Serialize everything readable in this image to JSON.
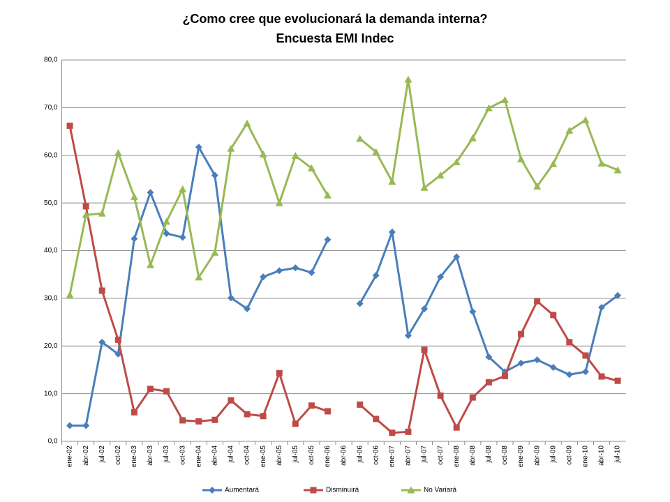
{
  "chart_data": {
    "type": "line",
    "title": "¿Como cree que evolucionará la demanda interna?",
    "subtitle": "Encuesta EMI Indec",
    "categories": [
      "ene-02",
      "abr-02",
      "jul-02",
      "oct-02",
      "ene-03",
      "abr-03",
      "jul-03",
      "oct-03",
      "ene-04",
      "abr-04",
      "jul-04",
      "oct-04",
      "ene-05",
      "abr-05",
      "jul-05",
      "oct-05",
      "ene-06",
      "abr-06",
      "jul-06",
      "oct-06",
      "ene-07",
      "abr-07",
      "jul-07",
      "oct-07",
      "ene-08",
      "abr-08",
      "jul-08",
      "oct-08",
      "ene-09",
      "abr-09",
      "jul-09",
      "oct-09",
      "ene-10",
      "abr-10",
      "jul-10"
    ],
    "series": [
      {
        "name": "Aumentará",
        "color": "#4a7ebb",
        "marker": "diamond",
        "values": [
          3.3,
          3.3,
          20.8,
          18.3,
          42.5,
          52.2,
          43.6,
          42.8,
          61.7,
          55.8,
          30.1,
          27.8,
          34.5,
          35.8,
          36.4,
          35.4,
          42.3,
          null,
          28.9,
          34.8,
          43.9,
          22.2,
          27.8,
          34.5,
          38.7,
          27.2,
          17.7,
          14.6,
          16.4,
          17.1,
          15.5,
          14.0,
          14.6,
          28.1,
          30.6
        ]
      },
      {
        "name": "Disminuirá",
        "color": "#be4b48",
        "marker": "square",
        "values": [
          66.2,
          49.3,
          31.6,
          21.3,
          6.1,
          11.0,
          10.5,
          4.4,
          4.2,
          4.5,
          8.6,
          5.7,
          5.3,
          14.3,
          3.7,
          7.5,
          6.3,
          null,
          7.7,
          4.7,
          1.8,
          2.0,
          19.2,
          9.6,
          2.9,
          9.2,
          12.4,
          13.7,
          22.5,
          29.4,
          26.5,
          20.8,
          18.0,
          13.6,
          12.7
        ]
      },
      {
        "name": "No Variará",
        "color": "#98b954",
        "marker": "triangle",
        "values": [
          30.7,
          47.5,
          47.8,
          60.5,
          51.3,
          37.0,
          46.1,
          52.9,
          34.4,
          39.6,
          61.4,
          66.7,
          60.2,
          50.0,
          59.9,
          57.3,
          51.6,
          null,
          63.5,
          60.7,
          54.5,
          75.9,
          53.2,
          55.8,
          58.6,
          63.6,
          69.9,
          71.6,
          59.2,
          53.5,
          58.2,
          65.2,
          67.4,
          58.3,
          56.9
        ]
      }
    ],
    "ylim": [
      0,
      80
    ],
    "yticks": [
      {
        "value": 0,
        "label": "0,0"
      },
      {
        "value": 10,
        "label": "10,0"
      },
      {
        "value": 20,
        "label": "20,0"
      },
      {
        "value": 30,
        "label": "30,0"
      },
      {
        "value": 40,
        "label": "40,0"
      },
      {
        "value": 50,
        "label": "50,0"
      },
      {
        "value": 60,
        "label": "60,0"
      },
      {
        "value": 70,
        "label": "70,0"
      },
      {
        "value": 80,
        "label": "80,0"
      }
    ],
    "grid": true,
    "legend": "bottom"
  }
}
